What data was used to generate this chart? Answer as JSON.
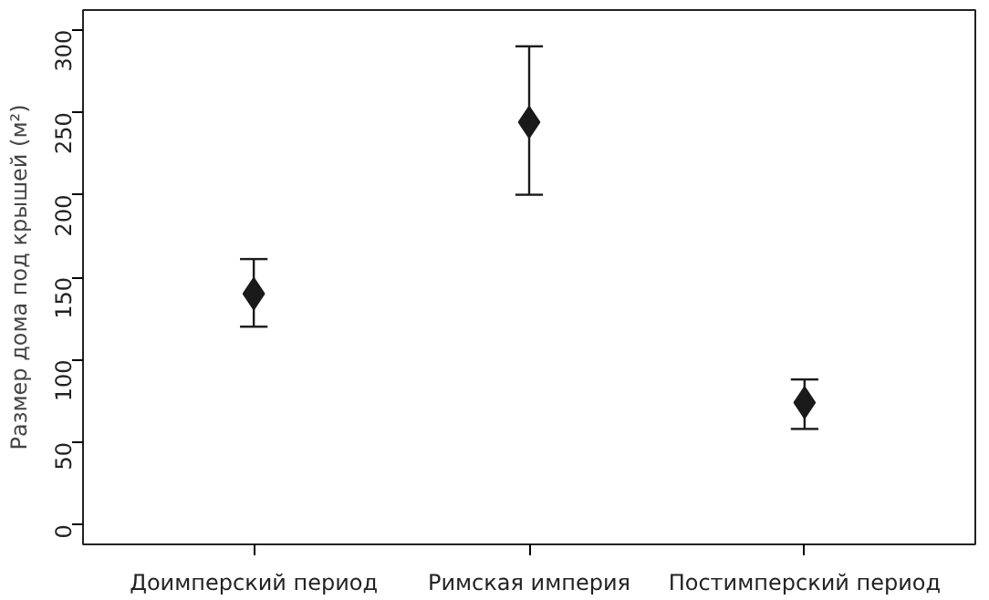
{
  "chart_data": {
    "type": "scatter",
    "ylabel": "Размер дома под крышей (м²)",
    "categories": [
      "Доимперский период",
      "Римская империя",
      "Постимперский период"
    ],
    "values": [
      140,
      244,
      74
    ],
    "errors": [
      [
        120,
        161
      ],
      [
        200,
        290
      ],
      [
        58,
        88
      ]
    ],
    "color": "#1a1a1a",
    "marker": "diamond",
    "ylim": [
      -12,
      312
    ],
    "yticks": [
      0,
      50,
      100,
      150,
      200,
      250,
      300
    ],
    "grid": false
  }
}
